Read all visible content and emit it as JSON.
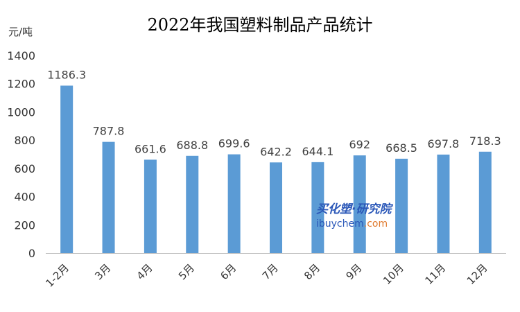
{
  "chart_data": {
    "type": "bar",
    "title": "2022年我国塑料制品产品统计",
    "unit_label": "元/吨",
    "xlabel": "",
    "ylabel": "",
    "categories": [
      "1-2月",
      "3月",
      "4月",
      "5月",
      "6月",
      "7月",
      "8月",
      "9月",
      "10月",
      "11月",
      "12月"
    ],
    "values": [
      1186.3,
      787.8,
      661.6,
      688.8,
      699.6,
      642.2,
      644.1,
      692,
      668.5,
      697.8,
      718.3
    ],
    "data_labels": [
      "1186.3",
      "787.8",
      "661.6",
      "688.8",
      "699.6",
      "642.2",
      "644.1",
      "692",
      "668.5",
      "697.8",
      "718.3"
    ],
    "ylim": [
      0,
      1400
    ],
    "y_ticks": [
      0,
      200,
      400,
      600,
      800,
      1000,
      1200,
      1400
    ],
    "grid": false,
    "legend": "none",
    "bar_color": "#5b9bd5"
  },
  "watermark": {
    "cn_text": "买化塑·研究院",
    "en_main": "ibuychem",
    "en_suffix": ".com"
  }
}
